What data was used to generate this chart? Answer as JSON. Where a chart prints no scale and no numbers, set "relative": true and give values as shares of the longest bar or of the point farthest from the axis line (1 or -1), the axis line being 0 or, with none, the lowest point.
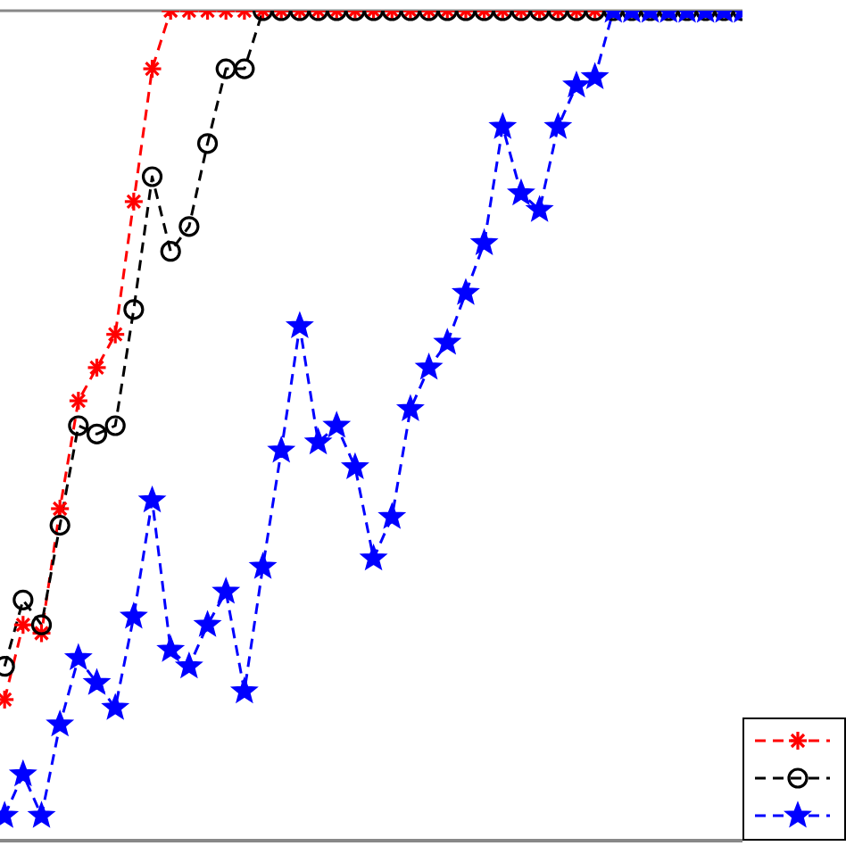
{
  "chart_data": {
    "type": "line",
    "relative": true,
    "categories": [
      null,
      null,
      null,
      null,
      null,
      null,
      null,
      null,
      null,
      null,
      null,
      null,
      null,
      null,
      null,
      null,
      null,
      null,
      null,
      null,
      null,
      null,
      null,
      null,
      null,
      null,
      null,
      null,
      null,
      null,
      null,
      null,
      null,
      null,
      null,
      null,
      null,
      null,
      null,
      null,
      null
    ],
    "series": [
      {
        "color": "#ff0000",
        "marker": "cross",
        "values": [
          0.17,
          0.26,
          0.25,
          0.4,
          0.53,
          0.57,
          0.61,
          0.77,
          0.93,
          1,
          1,
          1,
          1,
          1,
          1,
          1,
          1,
          1,
          1,
          1,
          1,
          1,
          1,
          1,
          1,
          1,
          1,
          1,
          1,
          1,
          1,
          1,
          1,
          null,
          null,
          null,
          null,
          null,
          null,
          null,
          null
        ]
      },
      {
        "color": "#000000",
        "marker": "circle",
        "values": [
          0.21,
          0.29,
          0.26,
          0.38,
          0.5,
          0.49,
          0.5,
          0.64,
          0.8,
          0.71,
          0.74,
          0.84,
          0.93,
          0.93,
          1,
          1,
          1,
          1,
          1,
          1,
          1,
          1,
          1,
          1,
          1,
          1,
          1,
          1,
          1,
          1,
          1,
          1,
          1,
          1,
          1,
          1,
          1,
          1,
          1,
          1,
          1
        ]
      },
      {
        "color": "#0000ff",
        "marker": "star",
        "values": [
          0.03,
          0.08,
          0.03,
          0.14,
          0.22,
          0.19,
          0.16,
          0.27,
          0.41,
          0.23,
          0.21,
          0.26,
          0.3,
          0.18,
          0.33,
          0.47,
          0.62,
          0.48,
          0.5,
          0.45,
          0.34,
          0.39,
          0.52,
          0.57,
          0.6,
          0.66,
          0.72,
          0.86,
          0.78,
          0.76,
          0.86,
          0.91,
          0.92,
          1,
          1,
          1,
          1,
          1,
          1,
          1,
          1
        ]
      }
    ],
    "line_style": "dashed",
    "grid": false
  }
}
